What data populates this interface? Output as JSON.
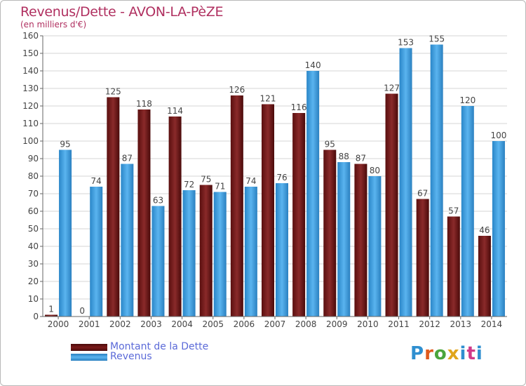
{
  "title": "Revenus/Dette - AVON-LA-PèZE",
  "subtitle": "(en milliers d'€)",
  "logo": "Proxiti",
  "colors": {
    "dette": "#7b1a1a",
    "revenus": "#3a9ee0",
    "title": "#b03060",
    "legend_text": "#5b6ad8",
    "grid": "#d4d4d4"
  },
  "chart_data": {
    "type": "bar",
    "categories": [
      "2000",
      "2001",
      "2002",
      "2003",
      "2004",
      "2005",
      "2006",
      "2007",
      "2008",
      "2009",
      "2010",
      "2011",
      "2012",
      "2013",
      "2014"
    ],
    "series": [
      {
        "name": "Montant de la Dette",
        "values": [
          1,
          0,
          125,
          118,
          114,
          75,
          126,
          121,
          116,
          95,
          87,
          127,
          67,
          57,
          46
        ]
      },
      {
        "name": "Revenus",
        "values": [
          95,
          74,
          87,
          63,
          72,
          71,
          74,
          76,
          140,
          88,
          80,
          153,
          155,
          120,
          100
        ]
      }
    ],
    "ylim": [
      0,
      160
    ],
    "yticks": [
      0,
      10,
      20,
      30,
      40,
      50,
      60,
      70,
      80,
      90,
      100,
      110,
      120,
      130,
      140,
      150,
      160
    ],
    "grid": true,
    "legend_position": "bottom-left"
  }
}
